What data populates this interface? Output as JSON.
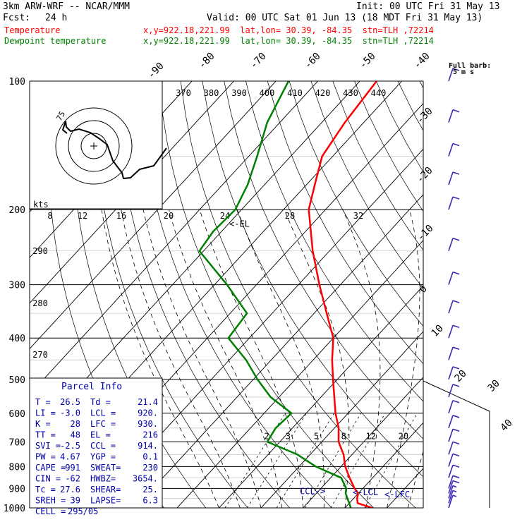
{
  "header": {
    "model": "3km ARW-WRF -- NCAR/MMM",
    "init": "Init: 00 UTC Fri 31 May 13",
    "fcst_label": "Fcst:",
    "fcst_hours": "24 h",
    "valid": "Valid: 00 UTC Sat 01 Jun 13 (18 MDT Fri 31 May 13)",
    "temp_name": "Temperature",
    "temp_loc": "x,y=922.18,221.99  lat,lon= 30.39, -84.35  stn=TLH ,72214",
    "dew_name": "Dewpoint temperature",
    "dew_loc": "x,y=922.18,221.99  lat,lon= 30.39, -84.35  stn=TLH ,72214",
    "barb_note_1": "Full barb:",
    "barb_note_2": "5 m s",
    "colors": {
      "temperature": "#ff0000",
      "dewpoint": "#008000",
      "winds": "#3a2ab4",
      "parcel": "#0000aa"
    }
  },
  "chart_data": {
    "type": "skew-t",
    "pressure_levels": [
      100,
      200,
      300,
      400,
      500,
      600,
      700,
      800,
      900,
      1000
    ],
    "ylim_hPa": [
      1000,
      100
    ],
    "isotherm_labels": [
      "-90",
      "-80",
      "-70",
      "-60",
      "-50",
      "-40",
      "-30",
      "-20",
      "-10",
      "0",
      "10",
      "20",
      "30",
      "40"
    ],
    "isotherm_values": [
      -80,
      -70,
      -60,
      -50,
      -40,
      -30,
      -20,
      -10,
      0,
      10,
      20,
      30,
      40
    ],
    "theta_labels": [
      "370",
      "380",
      "390",
      "400",
      "410",
      "420",
      "430",
      "440"
    ],
    "dry_adiabat_labels": [
      "290",
      "280",
      "270"
    ],
    "mixing_ratio_labels": [
      "2",
      "3",
      "5",
      "8",
      "12",
      "20"
    ],
    "hodograph": {
      "units": "kts",
      "ring_labels": [
        "8",
        "12",
        "16",
        "20",
        "24",
        "28",
        "32"
      ],
      "annotations": [
        "75"
      ]
    },
    "temperature": {
      "name": "Temperature",
      "points": [
        [
          1000,
          26.5
        ],
        [
          975,
          22.0
        ],
        [
          950,
          20.8
        ],
        [
          925,
          20.0
        ],
        [
          900,
          18.0
        ],
        [
          850,
          14.5
        ],
        [
          800,
          11.0
        ],
        [
          750,
          8.0
        ],
        [
          700,
          4.0
        ],
        [
          650,
          1.0
        ],
        [
          600,
          -3.0
        ],
        [
          500,
          -11.0
        ],
        [
          450,
          -15.5
        ],
        [
          400,
          -20.0
        ],
        [
          350,
          -27.0
        ],
        [
          300,
          -35.0
        ],
        [
          250,
          -44.0
        ],
        [
          200,
          -54.0
        ],
        [
          175,
          -58.0
        ],
        [
          150,
          -62.5
        ],
        [
          125,
          -64.5
        ],
        [
          100,
          -66.0
        ]
      ]
    },
    "dewpoint": {
      "name": "Dewpoint temperature",
      "points": [
        [
          1000,
          21.4
        ],
        [
          975,
          20.0
        ],
        [
          950,
          18.5
        ],
        [
          925,
          17.0
        ],
        [
          900,
          16.0
        ],
        [
          850,
          12.5
        ],
        [
          800,
          4.0
        ],
        [
          750,
          -3.0
        ],
        [
          700,
          -13.0
        ],
        [
          650,
          -14.0
        ],
        [
          600,
          -13.5
        ],
        [
          550,
          -22.0
        ],
        [
          500,
          -29.0
        ],
        [
          450,
          -36.0
        ],
        [
          400,
          -45.0
        ],
        [
          350,
          -46.0
        ],
        [
          300,
          -57.0
        ],
        [
          250,
          -71.0
        ],
        [
          225,
          -72.0
        ],
        [
          200,
          -71.5
        ],
        [
          175,
          -74.0
        ],
        [
          150,
          -78.0
        ],
        [
          125,
          -83.0
        ],
        [
          100,
          -87.0
        ]
      ]
    },
    "level_markers": [
      {
        "label": "EL",
        "p": 216
      },
      {
        "label": "CCL",
        "p": 914
      },
      {
        "label": "LCL",
        "p": 920
      },
      {
        "label": "LFC",
        "p": 930
      }
    ],
    "wind_barbs_kt": [
      [
        1000,
        5
      ],
      [
        975,
        5
      ],
      [
        950,
        5
      ],
      [
        925,
        10
      ],
      [
        900,
        10
      ],
      [
        850,
        10
      ],
      [
        800,
        10
      ],
      [
        750,
        10
      ],
      [
        700,
        10
      ],
      [
        650,
        10
      ],
      [
        600,
        10
      ],
      [
        550,
        10
      ],
      [
        500,
        10
      ],
      [
        450,
        10
      ],
      [
        400,
        10
      ],
      [
        350,
        10
      ],
      [
        300,
        10
      ],
      [
        250,
        10
      ],
      [
        200,
        10
      ],
      [
        175,
        10
      ],
      [
        150,
        10
      ],
      [
        125,
        10
      ],
      [
        100,
        10
      ]
    ]
  },
  "parcel_info": {
    "title": "Parcel Info",
    "rows": [
      [
        "T  =",
        "26.5",
        "Td =",
        "21.4"
      ],
      [
        "LI =",
        "-3.0",
        "LCL =",
        "920."
      ],
      [
        "K  =",
        "28",
        "LFC =",
        "930."
      ],
      [
        "TT =",
        "48",
        "EL  =",
        "216"
      ],
      [
        "SVI =",
        "-2.5",
        "CCL =",
        "914."
      ],
      [
        "PW =",
        "4.67",
        "YGP =",
        "0.1"
      ],
      [
        "CAPE =",
        "991",
        "SWEAT=",
        "230"
      ],
      [
        "CIN =",
        "-62",
        "HWBZ=",
        "3654."
      ],
      [
        "Tc =",
        "27.6",
        "SHEAR=",
        "25."
      ],
      [
        "SREH =",
        "39",
        "LAPSE=",
        "6.3"
      ],
      [
        "CELL =",
        "295/05",
        "",
        ""
      ]
    ]
  }
}
